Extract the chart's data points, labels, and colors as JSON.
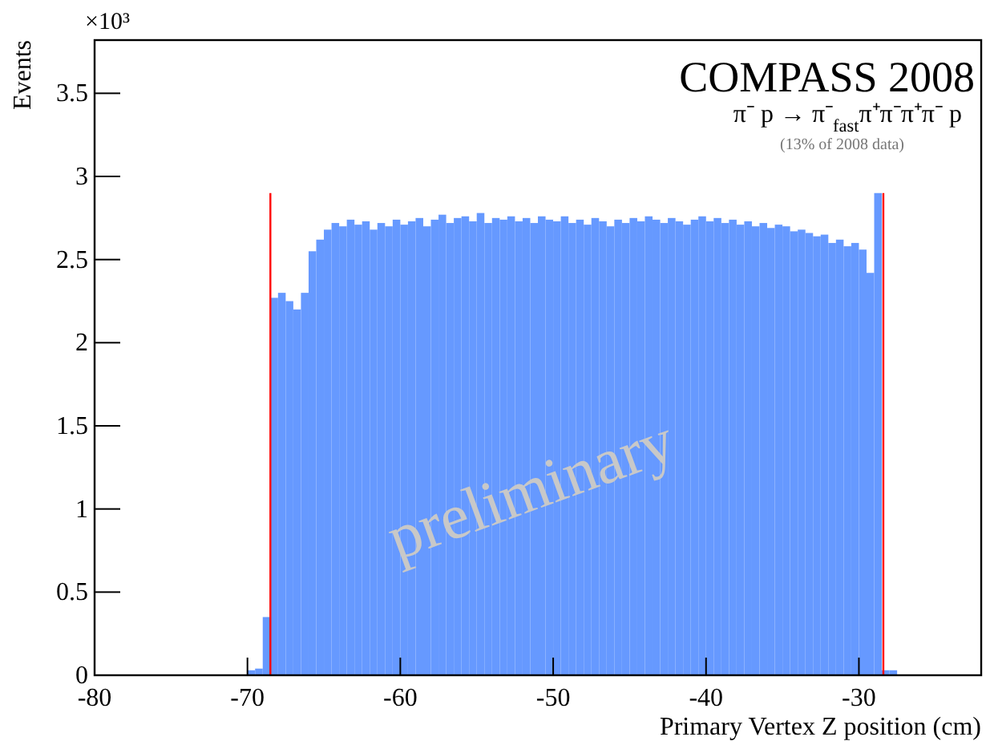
{
  "chart_data": {
    "type": "histogram",
    "xlabel": "Primary Vertex Z position (cm)",
    "ylabel": "Events",
    "annotations": [
      "COMPASS 2008",
      "π⁻ p → π⁻$_{fast}$π⁺π⁻π⁺π⁻ p",
      "(13% of 2008 data)",
      "preliminary",
      "×10³"
    ],
    "color": "#6699ff",
    "bins": [
      -70,
      -69.5,
      -69,
      -68.5,
      -68,
      -67.5,
      -67,
      -66.5,
      -66,
      -65.5,
      -65,
      -64.5,
      -64,
      -63.5,
      -63,
      -62.5,
      -62,
      -61.5,
      -61,
      -60.5,
      -60,
      -59.5,
      -59,
      -58.5,
      -58,
      -57.5,
      -57,
      -56.5,
      -56,
      -55.5,
      -55,
      -54.5,
      -54,
      -53.5,
      -53,
      -52.5,
      -52,
      -51.5,
      -51,
      -50.5,
      -50,
      -49.5,
      -49,
      -48.5,
      -48,
      -47.5,
      -47,
      -46.5,
      -46,
      -45.5,
      -45,
      -44.5,
      -44,
      -43.5,
      -43,
      -42.5,
      -42,
      -41.5,
      -41,
      -40.5,
      -40,
      -39.5,
      -39,
      -38.5,
      -38,
      -37.5,
      -37,
      -36.5,
      -36,
      -35.5,
      -35,
      -34.5,
      -34,
      -33.5,
      -33,
      -32.5,
      -32,
      -31.5,
      -31,
      -30.5,
      -30,
      -29.5,
      -29,
      -28.5,
      -28,
      -27.5
    ],
    "values": [
      0.03,
      0.04,
      0.35,
      2.27,
      2.3,
      2.25,
      2.2,
      2.3,
      2.55,
      2.62,
      2.68,
      2.72,
      2.7,
      2.74,
      2.71,
      2.73,
      2.68,
      2.72,
      2.7,
      2.74,
      2.71,
      2.73,
      2.75,
      2.7,
      2.74,
      2.77,
      2.72,
      2.75,
      2.76,
      2.73,
      2.78,
      2.72,
      2.75,
      2.74,
      2.76,
      2.73,
      2.75,
      2.72,
      2.76,
      2.74,
      2.73,
      2.76,
      2.72,
      2.74,
      2.71,
      2.75,
      2.73,
      2.7,
      2.74,
      2.72,
      2.75,
      2.73,
      2.76,
      2.74,
      2.72,
      2.75,
      2.73,
      2.71,
      2.74,
      2.76,
      2.73,
      2.75,
      2.72,
      2.74,
      2.71,
      2.73,
      2.7,
      2.72,
      2.69,
      2.71,
      2.7,
      2.67,
      2.68,
      2.66,
      2.64,
      2.65,
      2.6,
      2.62,
      2.58,
      2.6,
      2.56,
      2.42,
      2.9,
      0.03,
      0.03
    ],
    "xlim": [
      -80,
      -22
    ],
    "xticks": [
      -80,
      -70,
      -60,
      -50,
      -40,
      -30
    ],
    "ylim": [
      0,
      3.82
    ],
    "yticks": [
      0,
      0.5,
      1,
      1.5,
      2,
      2.5,
      3,
      3.5
    ],
    "ref_lines": [
      {
        "axis": "x",
        "value": -68.5,
        "color": "#ff0000"
      },
      {
        "axis": "x",
        "value": -28.4,
        "color": "#ff0000"
      }
    ],
    "grid": false
  }
}
